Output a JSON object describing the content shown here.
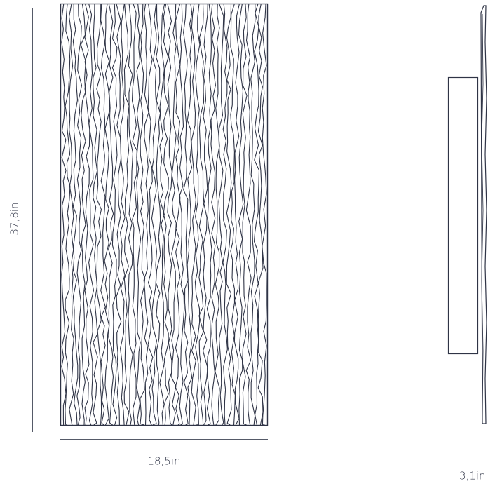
{
  "colors": {
    "line": "#2f3446",
    "dimension_line": "#555a68",
    "background": "#ffffff"
  },
  "dimensions": {
    "height": "37,8in",
    "width": "18,5in",
    "depth": "3,1in"
  }
}
